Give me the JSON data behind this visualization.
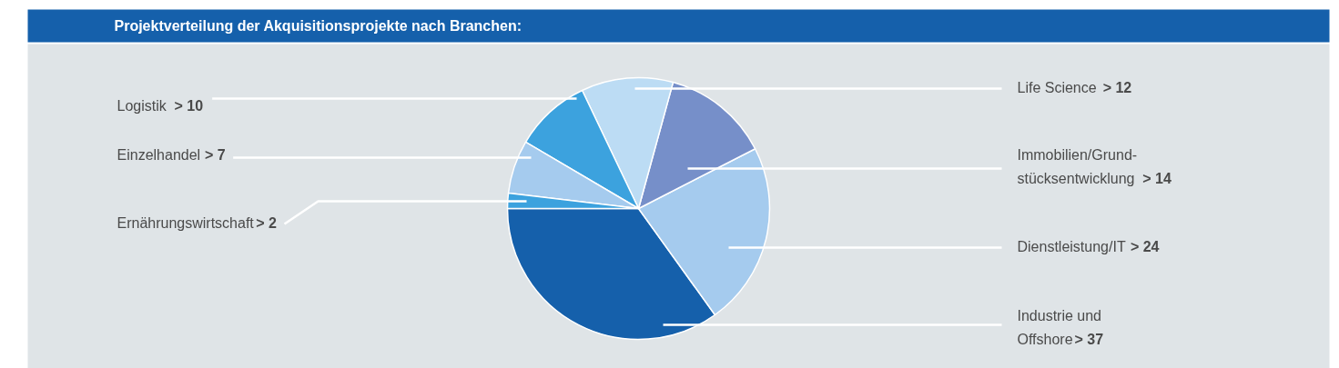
{
  "chart_data": {
    "type": "pie",
    "title": "Projektverteilung der Akquisitionsprojekte nach Branchen:",
    "categories": [
      "Industrie und\nOffshore",
      "Dienstleistung/IT",
      "Immobilien/Grund-\nstücksentwicklung",
      "Life Science",
      "Logistik",
      "Einzelhandel",
      "Ernährungswirtschaft"
    ],
    "values": [
      37,
      24,
      14,
      12,
      10,
      7,
      2
    ],
    "value_labels": [
      "> 37",
      "> 24",
      "> 14",
      "> 12",
      "> 10",
      "> 7",
      "> 2"
    ],
    "colors": [
      "#1560ab",
      "#a5cbee",
      "#768fc9",
      "#bcdcf4",
      "#3ca2de",
      "#a5cbee",
      "#3ca2de"
    ],
    "legend": false
  }
}
